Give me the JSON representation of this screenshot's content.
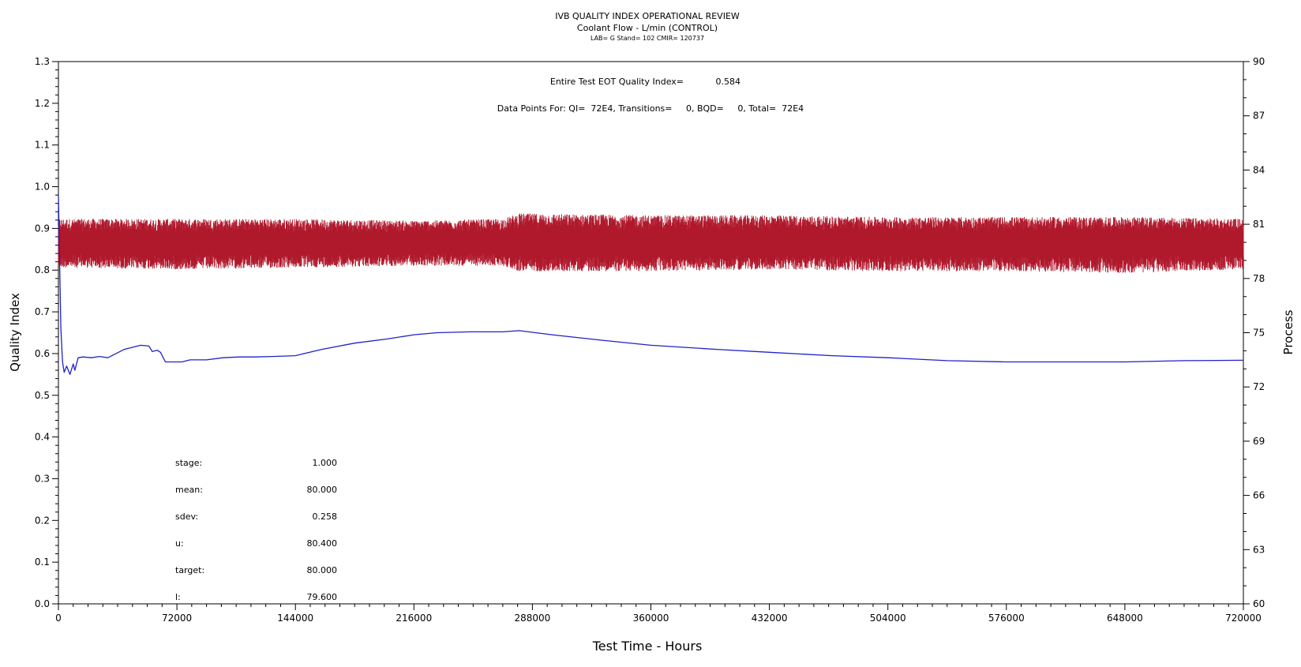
{
  "chart_data": {
    "type": "line",
    "title": "IVB QUALITY INDEX OPERATIONAL REVIEW",
    "subtitle": "Coolant Flow - L/min (CONTROL)",
    "subtitle2": "LAB= G Stand= 102 CMIR= 120737",
    "xlabel": "Test Time - Hours",
    "ylabel": "Quality Index",
    "y2label": "Process",
    "xlim": [
      0,
      720000
    ],
    "ylim": [
      0.0,
      1.3
    ],
    "y2lim": [
      60,
      90
    ],
    "x_ticks": [
      "0",
      "72000",
      "144000",
      "216000",
      "288000",
      "360000",
      "432000",
      "504000",
      "576000",
      "648000",
      "720000"
    ],
    "y_ticks": [
      "0.0",
      "0.1",
      "0.2",
      "0.3",
      "0.4",
      "0.5",
      "0.6",
      "0.7",
      "0.8",
      "0.9",
      "1.0",
      "1.1",
      "1.2",
      "1.3"
    ],
    "y2_ticks": [
      "60",
      "63",
      "66",
      "69",
      "72",
      "75",
      "78",
      "81",
      "84",
      "87",
      "90"
    ],
    "annotations": {
      "eot_label": "Entire Test EOT Quality Index=",
      "eot_value": "0.584",
      "points_label": "Data Points For: QI=  72E4, Transitions=     0, BQD=     0, Total=  72E4"
    },
    "stats": [
      {
        "label": "stage:",
        "value": "1.000"
      },
      {
        "label": "mean:",
        "value": "80.000"
      },
      {
        "label": "sdev:",
        "value": "0.258"
      },
      {
        "label": "u:",
        "value": "80.400"
      },
      {
        "label": "target:",
        "value": "80.000"
      },
      {
        "label": "l:",
        "value": "79.600"
      }
    ],
    "series": [
      {
        "axis": "y2",
        "color": "#b0182c",
        "style": "noise-band",
        "mean": 80.0,
        "band": [
          [
            0,
            78.6,
            81.3
          ],
          [
            72000,
            78.5,
            81.3
          ],
          [
            144000,
            78.6,
            81.3
          ],
          [
            216000,
            78.7,
            81.2
          ],
          [
            270000,
            78.7,
            81.3
          ],
          [
            280000,
            78.4,
            81.6
          ],
          [
            360000,
            78.4,
            81.5
          ],
          [
            432000,
            78.5,
            81.5
          ],
          [
            504000,
            78.4,
            81.4
          ],
          [
            576000,
            78.4,
            81.4
          ],
          [
            648000,
            78.3,
            81.4
          ],
          [
            720000,
            78.5,
            81.3
          ]
        ]
      },
      {
        "axis": "y",
        "color": "#1f22c8",
        "x": [
          0,
          800,
          1500,
          2500,
          3500,
          5000,
          7000,
          9000,
          10000,
          12000,
          15000,
          20000,
          25000,
          30000,
          35000,
          40000,
          45000,
          50000,
          55000,
          57000,
          60000,
          62000,
          65000,
          70000,
          75000,
          80000,
          90000,
          100000,
          110000,
          120000,
          130000,
          144000,
          160000,
          180000,
          200000,
          216000,
          230000,
          250000,
          270000,
          280000,
          300000,
          330000,
          360000,
          400000,
          432000,
          470000,
          504000,
          540000,
          576000,
          612000,
          648000,
          684000,
          720000
        ],
        "y": [
          0.98,
          0.8,
          0.66,
          0.58,
          0.555,
          0.57,
          0.55,
          0.575,
          0.56,
          0.59,
          0.592,
          0.59,
          0.593,
          0.59,
          0.6,
          0.61,
          0.615,
          0.62,
          0.618,
          0.605,
          0.608,
          0.603,
          0.58,
          0.58,
          0.58,
          0.585,
          0.585,
          0.59,
          0.592,
          0.592,
          0.593,
          0.595,
          0.61,
          0.625,
          0.635,
          0.645,
          0.65,
          0.652,
          0.652,
          0.655,
          0.645,
          0.632,
          0.62,
          0.61,
          0.603,
          0.595,
          0.59,
          0.583,
          0.58,
          0.58,
          0.58,
          0.583,
          0.584
        ]
      }
    ]
  }
}
